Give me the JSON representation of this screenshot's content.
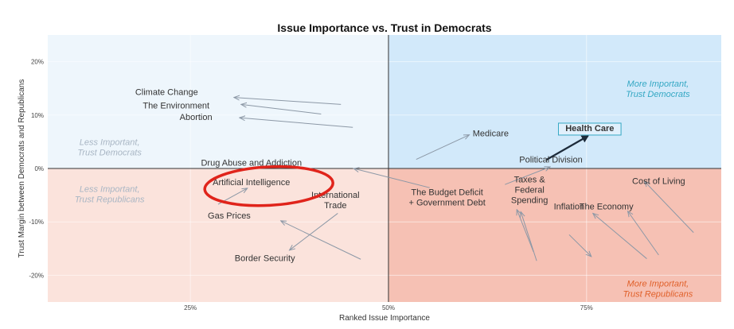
{
  "chart_data": {
    "type": "scatter",
    "title": "Issue Importance vs. Trust in Democrats",
    "xlabel": "Ranked Issue Importance",
    "ylabel": "Trust Margin between Democrats and Republicans",
    "xlim": [
      7,
      92
    ],
    "ylim": [
      -25,
      25
    ],
    "xticks": [
      {
        "value": 25,
        "label": "25%"
      },
      {
        "value": 50,
        "label": "50%"
      },
      {
        "value": 75,
        "label": "75%"
      }
    ],
    "yticks": [
      {
        "value": 20,
        "label": "20%"
      },
      {
        "value": 10,
        "label": "10%"
      },
      {
        "value": 0,
        "label": "0%"
      },
      {
        "value": -10,
        "label": "-10%"
      },
      {
        "value": -20,
        "label": "-20%"
      }
    ],
    "quadrant_colors": {
      "top_left": "#eef6fc",
      "top_right": "#d2e9fa",
      "bottom_left": "#fbe3dc",
      "bottom_right": "#f6c1b4"
    },
    "quadrant_labels": [
      {
        "lines": [
          "Less Important,",
          "Trust Democrats"
        ],
        "x": 14.8,
        "y": 4.4,
        "color": "#a9b6c4"
      },
      {
        "lines": [
          "More Important,",
          "Trust Democrats"
        ],
        "x": 84,
        "y": 15.3,
        "color": "#35a8c4"
      },
      {
        "lines": [
          "Less Important,",
          "Trust Republicans"
        ],
        "x": 14.8,
        "y": -4.4,
        "color": "#a9b6c4"
      },
      {
        "lines": [
          "More Important,",
          "Trust Republicans"
        ],
        "x": 84,
        "y": -22.1,
        "color": "#e0602a"
      }
    ],
    "points": [
      {
        "label": "Climate Change",
        "lines": [
          "Climate Change"
        ],
        "x": 22,
        "y": 13.8,
        "anchor": [
          52,
          14.2
        ],
        "arrow_from": [
          44,
          12
        ],
        "arrow_to": [
          30.5,
          13.3
        ]
      },
      {
        "label": "The Environment",
        "lines": [
          "The Environment"
        ],
        "x": 23.2,
        "y": 11.2,
        "anchor": [
          52,
          11.6
        ],
        "arrow_from": [
          41.5,
          10.2
        ],
        "arrow_to": [
          31.4,
          12
        ]
      },
      {
        "label": "Abortion",
        "lines": [
          "Abortion"
        ],
        "x": 25.7,
        "y": 9.1,
        "anchor": [
          52,
          9.5
        ],
        "arrow_from": [
          45.5,
          7.7
        ],
        "arrow_to": [
          31.2,
          9.5
        ]
      },
      {
        "label": "Medicare",
        "lines": [
          "Medicare"
        ],
        "x": 62.9,
        "y": 6,
        "anchor": [
          52,
          6.4
        ],
        "arrow_from": [
          53.5,
          1.7
        ],
        "arrow_to": [
          60.2,
          6.3
        ]
      },
      {
        "label": "Health Care",
        "lines": [
          "Health Care"
        ],
        "x": 75.4,
        "y": 7,
        "anchor": [
          52,
          7.4
        ],
        "highlight": true,
        "arrow_from": [
          69.9,
          1.6
        ],
        "arrow_to": [
          75.2,
          6.1
        ]
      },
      {
        "label": "Political Division",
        "lines": [
          "Political Division"
        ],
        "x": 70.5,
        "y": 1.1,
        "anchor": [
          52,
          1.5
        ],
        "arrow_from": [
          64.7,
          -3
        ],
        "arrow_to": [
          70.4,
          0.3
        ]
      },
      {
        "label": "Drug Abuse and Addiction",
        "lines": [
          "Drug Abuse and Addiction"
        ],
        "x": 32.7,
        "y": 0.5,
        "anchor": [
          52,
          0.9
        ],
        "arrow_from": [
          55.2,
          -3.6
        ],
        "arrow_to": [
          45.6,
          0
        ]
      },
      {
        "label": "Artificial Intelligence",
        "lines": [
          "Artificial Intelligence"
        ],
        "x": 32.7,
        "y": -3.1,
        "anchor": [
          52,
          -2.7
        ],
        "arrow_from": [
          28.5,
          -6.7
        ],
        "arrow_to": [
          32.2,
          -3.7
        ]
      },
      {
        "label": "International Trade",
        "lines": [
          "International",
          "Trade"
        ],
        "x": 43.3,
        "y": -5.5,
        "anchor": [
          0,
          -5.1
        ]
      },
      {
        "label": "Gas Prices",
        "lines": [
          "Gas Prices"
        ],
        "x": 29.9,
        "y": -9.4,
        "anchor": [
          52,
          -9
        ],
        "arrow_from": [
          46.5,
          -17
        ],
        "arrow_to": [
          36.4,
          -9.8
        ]
      },
      {
        "label": "Border Security",
        "lines": [
          "Border Security"
        ],
        "x": 34.4,
        "y": -17.3,
        "anchor": [
          52,
          -16.9
        ],
        "arrow_from": [
          43.6,
          -8.4
        ],
        "arrow_to": [
          37.5,
          -15.3
        ]
      },
      {
        "label": "The Budget Deficit + Government Debt",
        "lines": [
          "The Budget Deficit",
          "+ Government Debt"
        ],
        "x": 57.4,
        "y": -5,
        "anchor": [
          0,
          -4.6
        ],
        "arrow_from": [
          72.8,
          -12.4
        ],
        "arrow_to": [
          75.6,
          -16.5
        ]
      },
      {
        "label": "Taxes & Federal Spending",
        "lines": [
          "Taxes &",
          "Federal",
          "Spending"
        ],
        "x": 67.8,
        "y": -2.6,
        "anchor": [
          0,
          -2.2
        ]
      },
      {
        "label": "Inflation",
        "lines": [
          "Inflation"
        ],
        "x": 72.8,
        "y": -7.7,
        "anchor": [
          52,
          -7.3
        ]
      },
      {
        "label": "The Economy",
        "lines": [
          "The Economy"
        ],
        "x": 77.5,
        "y": -7.7,
        "anchor": [
          52,
          -7.3
        ]
      },
      {
        "label": "Cost of Living",
        "lines": [
          "Cost of Living"
        ],
        "x": 84.1,
        "y": -2.9,
        "anchor": [
          52,
          -2.5
        ]
      }
    ],
    "extra_arrows": [
      {
        "from": [
          68.3,
          -15.6
        ],
        "to": [
          66.2,
          -7.7
        ]
      },
      {
        "from": [
          68.7,
          -17.3
        ],
        "to": [
          66.7,
          -8.1
        ]
      },
      {
        "from": [
          82.6,
          -16.9
        ],
        "to": [
          75.8,
          -8.4
        ]
      },
      {
        "from": [
          84.1,
          -16.2
        ],
        "to": [
          80.2,
          -8
        ]
      },
      {
        "from": [
          88.5,
          -12
        ],
        "to": [
          82.3,
          -2.4
        ]
      }
    ],
    "highlight_ellipse": {
      "cx": 34.9,
      "cy": -3.3,
      "rx": 8.1,
      "ry": 3.6,
      "color": "#e0241b"
    }
  }
}
